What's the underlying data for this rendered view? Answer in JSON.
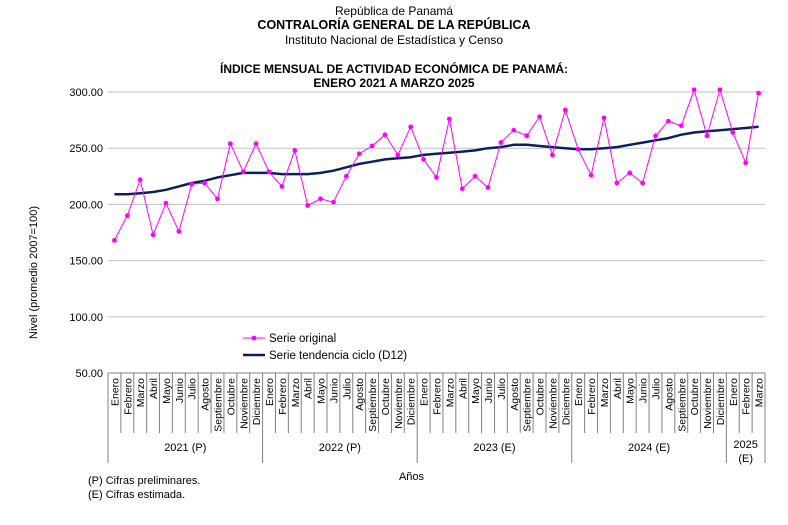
{
  "header": {
    "line1": "República de Panamá",
    "line2": "CONTRALORÍA GENERAL DE LA REPÚBLICA",
    "line3": "Instituto Nacional de Estadística y Censo"
  },
  "notes": {
    "preliminary": "(P) Cifras preliminares.",
    "estimated": "(E) Cifras estimada."
  },
  "chart_data": {
    "type": "line",
    "title": "ÍNDICE MENSUAL DE ACTIVIDAD ECONÓMICA DE PANAMÁ:",
    "subtitle": "ENERO 2021 A MARZO 2025",
    "ylabel": "Nivel (promedio 2007=100)",
    "xlabel": "Años",
    "ylim": [
      50,
      300
    ],
    "yticks": [
      "300.00",
      "250.00",
      "200.00",
      "150.00",
      "100.00",
      "50.00"
    ],
    "grid": true,
    "legend_position": "center-left",
    "months": [
      "Enero",
      "Febrero",
      "Marzo",
      "Abril",
      "Mayo",
      "Junio",
      "Julio",
      "Agosto",
      "Septiembre",
      "Octubre",
      "Noviembre",
      "Diciembre",
      "Enero",
      "Febrero",
      "Marzo",
      "Abril",
      "Mayo",
      "Junio",
      "Julio",
      "Agosto",
      "Septiembre",
      "Octubre",
      "Noviembre",
      "Diciembre",
      "Enero",
      "Febrero",
      "Marzo",
      "Abril",
      "Mayo",
      "Junio",
      "Julio",
      "Agosto",
      "Septiembre",
      "Octubre",
      "Noviembre",
      "Diciembre",
      "Enero",
      "Febrero",
      "Marzo",
      "Abril",
      "Mayo",
      "Junio",
      "Julio",
      "Agosto",
      "Septiembre",
      "Octubre",
      "Noviembre",
      "Diciembre",
      "Enero",
      "Febrero",
      "Marzo"
    ],
    "years": [
      {
        "label": "2021 (P)",
        "months": 12
      },
      {
        "label": "2022 (P)",
        "months": 12
      },
      {
        "label": "2023 (E)",
        "months": 12
      },
      {
        "label": "2024 (E)",
        "months": 12
      },
      {
        "label": "2025 (E)",
        "months": 3
      }
    ],
    "series": [
      {
        "name": "Serie original",
        "color": "#ff00ff",
        "marker": "circle",
        "values": [
          168,
          190,
          222,
          173,
          201,
          176,
          218,
          219,
          205,
          254,
          229,
          254,
          229,
          216,
          248,
          199,
          205,
          202,
          225,
          245,
          252,
          262,
          244,
          269,
          240,
          224,
          276,
          214,
          225,
          215,
          255,
          266,
          261,
          278,
          244,
          284,
          249,
          226,
          277,
          219,
          228,
          219,
          261,
          274,
          270,
          302,
          261,
          302,
          264,
          237,
          299
        ]
      },
      {
        "name": "Serie tendencia ciclo (D12)",
        "color": "#0b1f5e",
        "marker": "none",
        "values": [
          209,
          209,
          210,
          211,
          213,
          216,
          219,
          221,
          224,
          226,
          228,
          228,
          228,
          227,
          227,
          227,
          228,
          230,
          233,
          236,
          238,
          240,
          241,
          242,
          244,
          245,
          246,
          247,
          248,
          250,
          251,
          253,
          253,
          252,
          251,
          250,
          249,
          249,
          250,
          251,
          253,
          255,
          257,
          259,
          262,
          264,
          265,
          266,
          267,
          268,
          269
        ]
      }
    ]
  }
}
